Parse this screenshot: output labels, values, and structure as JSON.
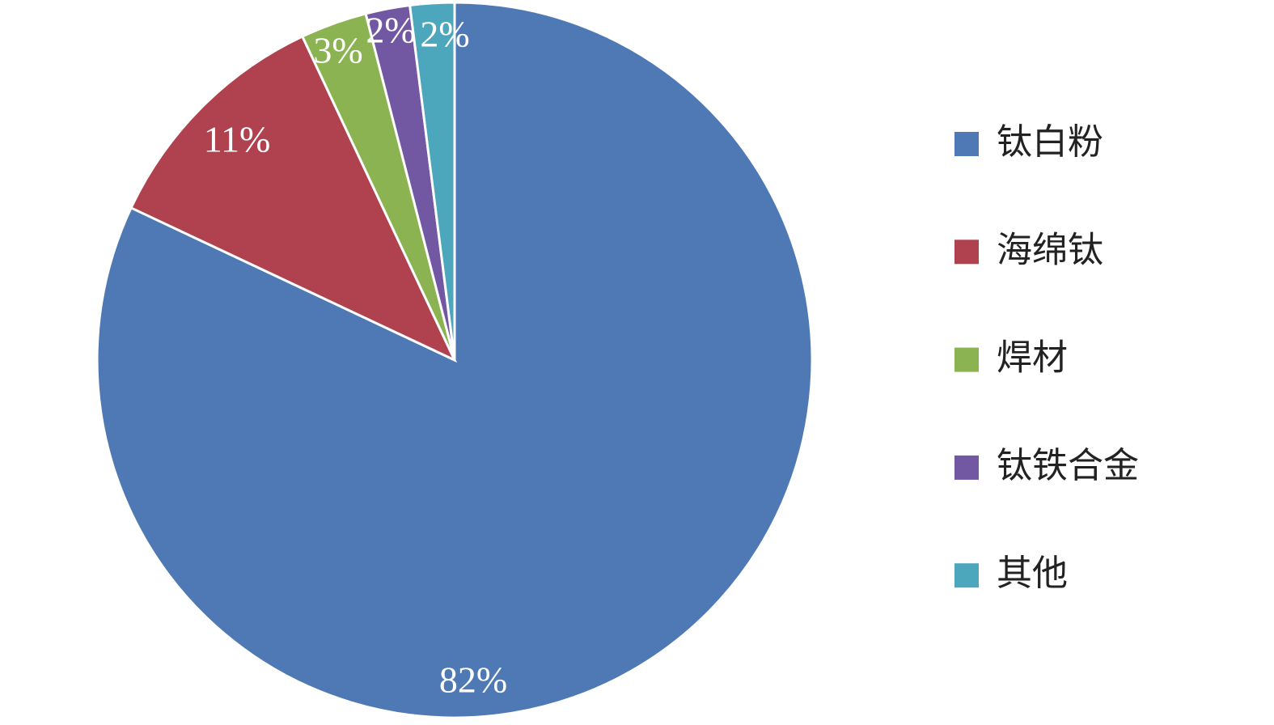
{
  "chart_data": {
    "type": "pie",
    "categories": [
      "钛白粉",
      "海绵钛",
      "焊材",
      "钛铁合金",
      "其他"
    ],
    "values": [
      82,
      11,
      3,
      2,
      2
    ],
    "value_labels": [
      "82%",
      "11%",
      "3%",
      "2%",
      "2%"
    ],
    "colors": [
      "#4f79b5",
      "#b0424f",
      "#8bb352",
      "#7258a3",
      "#4ca6bc"
    ],
    "legend": "right"
  }
}
